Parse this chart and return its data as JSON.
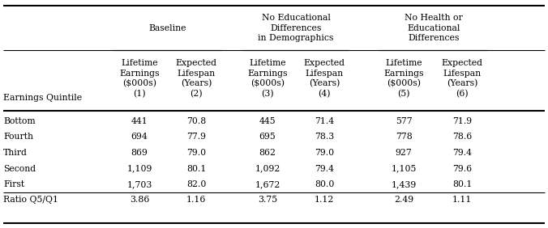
{
  "rows": [
    [
      "Bottom",
      "441",
      "70.8",
      "445",
      "71.4",
      "577",
      "71.9"
    ],
    [
      "Fourth",
      "694",
      "77.9",
      "695",
      "78.3",
      "778",
      "78.6"
    ],
    [
      "Third",
      "869",
      "79.0",
      "862",
      "79.0",
      "927",
      "79.4"
    ],
    [
      "Second",
      "1,109",
      "80.1",
      "1,092",
      "79.4",
      "1,105",
      "79.6"
    ],
    [
      "First",
      "1,703",
      "82.0",
      "1,672",
      "80.0",
      "1,439",
      "80.1"
    ],
    [
      "Ratio Q5/Q1",
      "3.86",
      "1.16",
      "3.75",
      "1.12",
      "2.49",
      "1.11"
    ]
  ],
  "col_group_labels": [
    "Baseline",
    "No Educational\nDifferences\nin Demographics",
    "No Health or\nEducational\nDifferences"
  ],
  "col_subheaders": [
    [
      "Lifetime\nEarnings\n($000s)",
      "(1)"
    ],
    [
      "Expected\nLifespan\n(Years)",
      "(2)"
    ],
    [
      "Lifetime\nEarnings\n($000s)",
      "(3)"
    ],
    [
      "Expected\nLifespan\n(Years)",
      "(4)"
    ],
    [
      "Lifetime\nEarnings\n($000s)",
      "(5)"
    ],
    [
      "Expected\nLifespan\n(Years)",
      "(6)"
    ]
  ],
  "row_header": "Earnings Quintile",
  "fs": 7.8,
  "bg_color": "white",
  "text_color": "black"
}
